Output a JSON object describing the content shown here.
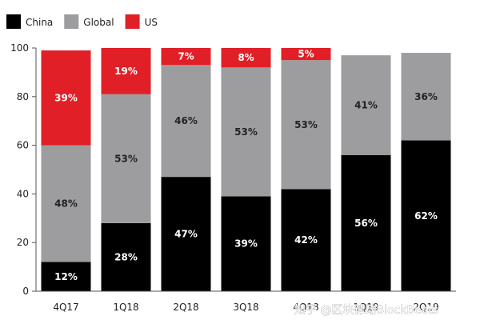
{
  "chart_data": {
    "type": "bar",
    "stacked": true,
    "categories": [
      "4Q17",
      "1Q18",
      "2Q18",
      "3Q18",
      "4Q18",
      "1Q19",
      "2Q19"
    ],
    "series": [
      {
        "name": "China",
        "color": "#000000",
        "label_color": "#ffffff",
        "values": [
          12,
          28,
          47,
          39,
          42,
          56,
          62
        ]
      },
      {
        "name": "Global",
        "color": "#9d9d9f",
        "label_color": "#222222",
        "values": [
          48,
          53,
          46,
          53,
          53,
          41,
          36
        ]
      },
      {
        "name": "US",
        "color": "#e01f26",
        "label_color": "#ffffff",
        "values": [
          39,
          19,
          7,
          8,
          5,
          0,
          0
        ]
      }
    ],
    "data_labels": [
      [
        "12%",
        "48%",
        "39%"
      ],
      [
        "28%",
        "53%",
        "19%"
      ],
      [
        "47%",
        "46%",
        "7%"
      ],
      [
        "39%",
        "53%",
        "8%"
      ],
      [
        "42%",
        "53%",
        "5%"
      ],
      [
        "56%",
        "41%",
        ""
      ],
      [
        "62%",
        "36%",
        ""
      ]
    ],
    "ylim": [
      0,
      100
    ],
    "yticks": [
      0,
      20,
      40,
      60,
      80,
      100
    ],
    "legend_position": "top-left",
    "title": "",
    "xlabel": "",
    "ylabel": ""
  },
  "watermark": "知乎 @区块律动BlockBeats"
}
